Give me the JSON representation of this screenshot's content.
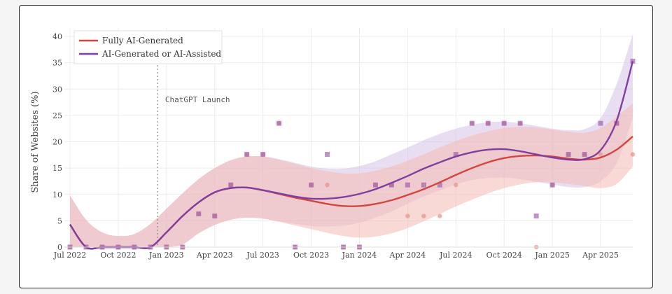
{
  "chart_data": {
    "type": "line",
    "title": "",
    "xlabel": "",
    "ylabel": "Share of Websites (%)",
    "ylim": [
      0,
      40
    ],
    "yticks": [
      0,
      5,
      10,
      15,
      20,
      25,
      30,
      35,
      40
    ],
    "xticks": [
      {
        "label": "Jul 2022",
        "month": 0
      },
      {
        "label": "Oct 2022",
        "month": 3
      },
      {
        "label": "Jan 2023",
        "month": 6
      },
      {
        "label": "Apr 2023",
        "month": 9
      },
      {
        "label": "Jul 2023",
        "month": 12
      },
      {
        "label": "Oct 2023",
        "month": 15
      },
      {
        "label": "Jan 2024",
        "month": 18
      },
      {
        "label": "Apr 2024",
        "month": 21
      },
      {
        "label": "Jul 2024",
        "month": 24
      },
      {
        "label": "Oct 2024",
        "month": 27
      },
      {
        "label": "Jan 2025",
        "month": 30
      },
      {
        "label": "Apr 2025",
        "month": 33
      }
    ],
    "x_unit": "months since Jul 2022",
    "xlim": [
      -0.35,
      35.2
    ],
    "grid": true,
    "legend_placement": "top-left",
    "annotation": {
      "text": "ChatGPT Launch",
      "month": 5.0
    },
    "series": [
      {
        "name": "Fully AI-Generated",
        "color": "#d6453d",
        "band_color": "#f4b9b2",
        "marker": "circle",
        "months": [
          0,
          1,
          2,
          3,
          4,
          5,
          6,
          7,
          8,
          9,
          10,
          11,
          12,
          13,
          14,
          15,
          16,
          17,
          18,
          19,
          20,
          21,
          22,
          23,
          24,
          25,
          26,
          27,
          28,
          29,
          30,
          31,
          32,
          33,
          34,
          35
        ],
        "points": [
          0,
          0,
          0,
          0,
          0,
          0,
          0,
          0,
          6.3,
          5.9,
          11.8,
          17.6,
          17.6,
          23.5,
          0,
          11.8,
          11.8,
          0,
          0,
          11.8,
          11.8,
          5.9,
          5.9,
          5.9,
          11.8,
          23.5,
          23.5,
          23.5,
          23.5,
          0,
          11.8,
          17.6,
          17.6,
          17.6,
          23.5,
          17.6
        ],
        "fit": [
          4.3,
          0,
          0,
          0,
          0,
          0,
          2.8,
          5.9,
          8.5,
          10.4,
          11.2,
          11.3,
          10.8,
          10.1,
          9.4,
          8.8,
          8.2,
          7.8,
          7.8,
          8.2,
          8.9,
          9.9,
          11.0,
          12.3,
          13.7,
          15.0,
          16.1,
          16.9,
          17.3,
          17.4,
          17.2,
          16.8,
          16.6,
          17.0,
          18.5,
          21.0
        ],
        "fit_lower": [
          0,
          0,
          0,
          0,
          0,
          0,
          0,
          0.5,
          2.6,
          4.2,
          5.2,
          5.6,
          5.4,
          4.8,
          4.1,
          3.4,
          2.7,
          2.1,
          1.8,
          2.0,
          2.6,
          3.6,
          4.9,
          6.3,
          7.7,
          9.0,
          10.2,
          11.2,
          11.9,
          12.3,
          12.3,
          12.0,
          11.6,
          11.2,
          12.0,
          15.3
        ],
        "fit_upper": [
          9.8,
          5.2,
          2.8,
          2.1,
          2.5,
          4.4,
          7.3,
          10.2,
          12.9,
          15.0,
          16.5,
          17.2,
          17.2,
          16.6,
          15.8,
          15.0,
          14.4,
          14.0,
          14.0,
          14.5,
          15.3,
          16.4,
          17.6,
          18.9,
          20.1,
          21.2,
          22.0,
          22.6,
          22.8,
          22.7,
          22.3,
          21.9,
          21.7,
          22.6,
          24.8,
          27.3
        ]
      },
      {
        "name": "AI-Generated or AI-Assisted",
        "color": "#7e3fa0",
        "band_color": "#d8c6e8",
        "marker": "square",
        "months": [
          0,
          1,
          2,
          3,
          4,
          5,
          6,
          7,
          8,
          9,
          10,
          11,
          12,
          13,
          14,
          15,
          16,
          17,
          18,
          19,
          20,
          21,
          22,
          23,
          24,
          25,
          26,
          27,
          28,
          29,
          30,
          31,
          32,
          33,
          34,
          35
        ],
        "points": [
          0,
          0,
          0,
          0,
          0,
          0,
          0,
          0,
          6.3,
          5.9,
          11.8,
          17.6,
          17.6,
          23.5,
          0,
          11.8,
          17.6,
          0,
          0,
          11.8,
          11.8,
          11.8,
          11.8,
          11.8,
          17.6,
          23.5,
          23.5,
          23.5,
          23.5,
          5.9,
          11.8,
          17.6,
          17.6,
          23.5,
          23.5,
          35.3
        ],
        "fit": [
          4.3,
          0,
          0,
          0,
          0,
          0,
          2.8,
          5.9,
          8.5,
          10.4,
          11.2,
          11.3,
          10.8,
          10.2,
          9.6,
          9.2,
          9.2,
          9.5,
          10.1,
          11.0,
          12.2,
          13.5,
          14.9,
          16.1,
          17.2,
          18.0,
          18.5,
          18.6,
          18.2,
          17.6,
          17.0,
          16.6,
          16.7,
          18.4,
          24.0,
          35.3
        ],
        "fit_lower": [
          0,
          0,
          0,
          0,
          0,
          0,
          0,
          0.5,
          2.6,
          4.2,
          5.2,
          5.6,
          5.4,
          4.9,
          4.4,
          4.0,
          3.9,
          4.1,
          4.6,
          5.6,
          6.8,
          8.2,
          9.6,
          10.8,
          11.9,
          12.7,
          13.1,
          13.2,
          12.9,
          12.4,
          11.9,
          11.4,
          11.4,
          12.5,
          16.0,
          24.5
        ],
        "fit_upper": [
          9.8,
          5.2,
          2.8,
          2.1,
          2.5,
          4.4,
          7.3,
          10.2,
          12.9,
          15.0,
          16.5,
          17.2,
          17.2,
          16.7,
          16.0,
          15.3,
          14.9,
          14.9,
          15.4,
          16.3,
          17.6,
          18.9,
          20.3,
          21.5,
          22.5,
          23.2,
          23.7,
          23.8,
          23.5,
          23.0,
          22.5,
          22.2,
          22.4,
          24.5,
          31.0,
          40.4
        ]
      }
    ]
  }
}
